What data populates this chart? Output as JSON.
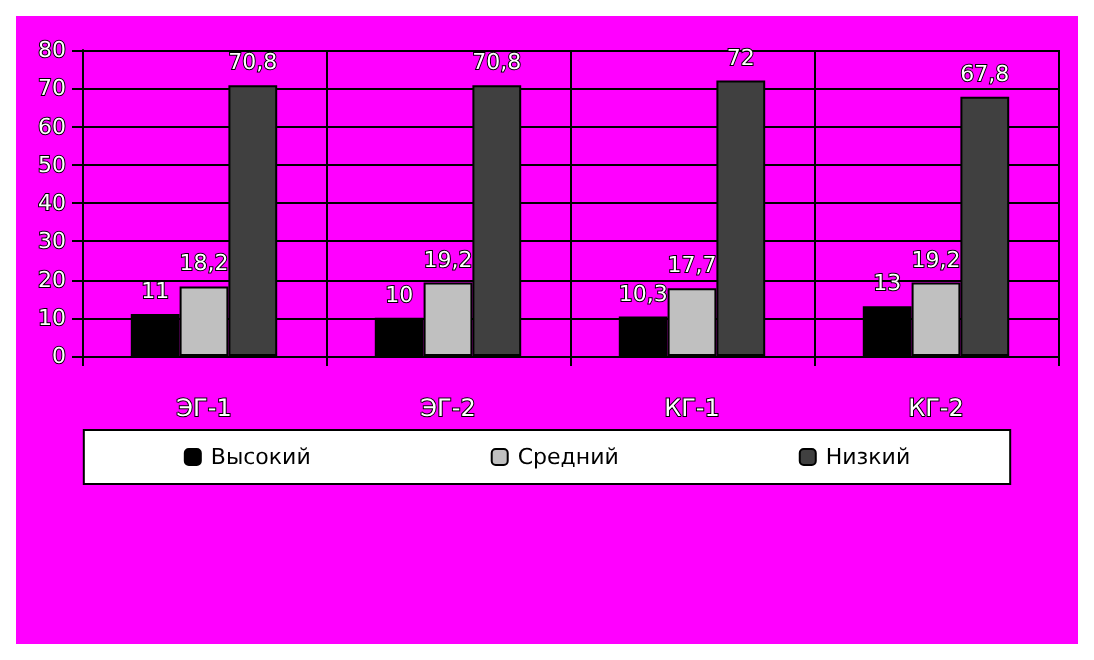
{
  "chart_data": {
    "type": "bar",
    "categories": [
      "ЭГ-1",
      "ЭГ-2",
      "КГ-1",
      "КГ-2"
    ],
    "series": [
      {
        "name": "Высокий",
        "color": "#000000",
        "values": [
          11,
          10,
          10.3,
          13
        ],
        "value_labels": [
          "11",
          "10",
          "10,3",
          "13"
        ]
      },
      {
        "name": "Средний",
        "color": "#c0c0c0",
        "values": [
          18.2,
          19.2,
          17.7,
          19.2
        ],
        "value_labels": [
          "18,2",
          "19,2",
          "17,7",
          "19,2"
        ]
      },
      {
        "name": "Низкий",
        "color": "#404040",
        "values": [
          70.8,
          70.8,
          72,
          67.8
        ],
        "value_labels": [
          "70,8",
          "70,8",
          "72",
          "67,8"
        ]
      }
    ],
    "ylim": [
      0,
      80
    ],
    "yticks": [
      0,
      10,
      20,
      30,
      40,
      50,
      60,
      70,
      80
    ],
    "grid": true,
    "legend": "bottom"
  }
}
